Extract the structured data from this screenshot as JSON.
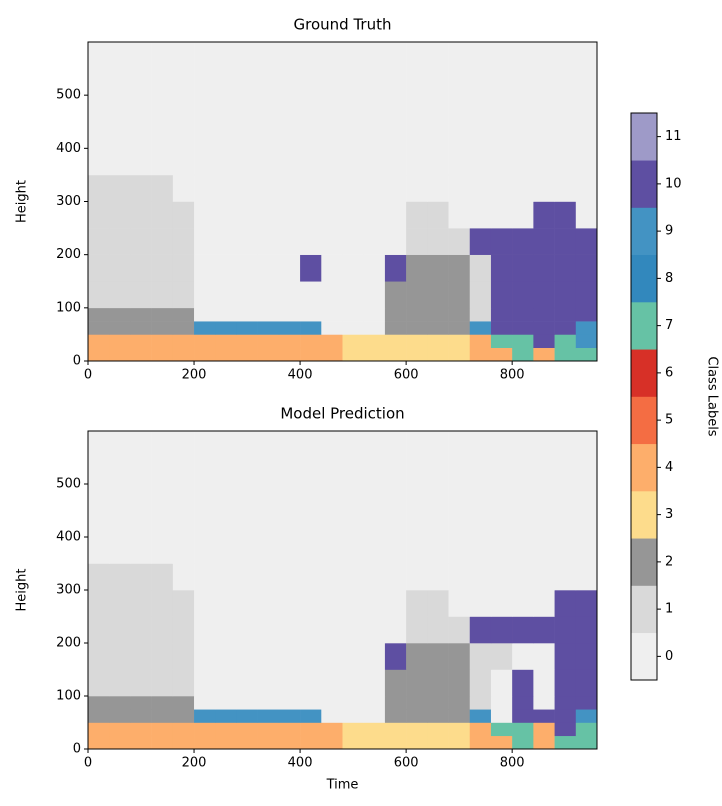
{
  "chart_data": [
    {
      "type": "heatmap",
      "title": "Ground Truth",
      "ylabel": "Height",
      "xlim": [
        0,
        960
      ],
      "ylim": [
        0,
        600
      ],
      "xticks": [
        0,
        200,
        400,
        600,
        800
      ],
      "yticks": [
        0,
        100,
        200,
        300,
        400,
        500
      ],
      "x_edges": [
        0,
        40,
        80,
        120,
        160,
        200,
        240,
        280,
        320,
        360,
        400,
        440,
        480,
        520,
        560,
        600,
        640,
        680,
        720,
        760,
        800,
        840,
        880,
        920,
        960
      ],
      "y_edges": [
        0,
        25,
        50,
        75,
        100,
        150,
        200,
        250,
        300,
        350,
        600
      ],
      "values": [
        [
          4,
          4,
          4,
          4,
          4,
          4,
          4,
          4,
          4,
          4,
          4,
          4,
          3,
          3,
          3,
          3,
          3,
          3,
          4,
          4,
          7,
          4,
          7,
          7
        ],
        [
          4,
          4,
          4,
          4,
          4,
          4,
          4,
          4,
          4,
          4,
          4,
          4,
          3,
          3,
          3,
          3,
          3,
          3,
          4,
          7,
          7,
          10,
          7,
          9
        ],
        [
          2,
          2,
          2,
          2,
          2,
          9,
          9,
          9,
          9,
          9,
          9,
          0,
          0,
          0,
          2,
          2,
          2,
          2,
          9,
          10,
          10,
          10,
          10,
          9
        ],
        [
          2,
          2,
          2,
          2,
          2,
          0,
          0,
          0,
          0,
          0,
          0,
          0,
          0,
          0,
          2,
          2,
          2,
          2,
          1,
          10,
          10,
          10,
          10,
          10
        ],
        [
          1,
          1,
          1,
          1,
          1,
          0,
          0,
          0,
          0,
          0,
          0,
          0,
          0,
          0,
          2,
          2,
          2,
          2,
          1,
          10,
          10,
          10,
          10,
          10
        ],
        [
          1,
          1,
          1,
          1,
          1,
          0,
          0,
          0,
          0,
          0,
          10,
          0,
          0,
          0,
          10,
          2,
          2,
          2,
          1,
          10,
          10,
          10,
          10,
          10
        ],
        [
          1,
          1,
          1,
          1,
          1,
          0,
          0,
          0,
          0,
          0,
          0,
          0,
          0,
          0,
          0,
          1,
          1,
          1,
          10,
          10,
          10,
          10,
          10,
          10
        ],
        [
          1,
          1,
          1,
          1,
          1,
          0,
          0,
          0,
          0,
          0,
          0,
          0,
          0,
          0,
          0,
          1,
          1,
          0,
          0,
          0,
          0,
          10,
          10,
          0
        ],
        [
          1,
          1,
          1,
          1,
          0,
          0,
          0,
          0,
          0,
          0,
          0,
          0,
          0,
          0,
          0,
          0,
          0,
          0,
          0,
          0,
          0,
          0,
          0,
          0
        ],
        [
          0,
          0,
          0,
          0,
          0,
          0,
          0,
          0,
          0,
          0,
          0,
          0,
          0,
          0,
          0,
          0,
          0,
          0,
          0,
          0,
          0,
          0,
          0,
          0
        ]
      ]
    },
    {
      "type": "heatmap",
      "title": "Model Prediction",
      "ylabel": "Height",
      "xlabel": "Time",
      "xlim": [
        0,
        960
      ],
      "ylim": [
        0,
        600
      ],
      "xticks": [
        0,
        200,
        400,
        600,
        800
      ],
      "yticks": [
        0,
        100,
        200,
        300,
        400,
        500
      ],
      "x_edges": [
        0,
        40,
        80,
        120,
        160,
        200,
        240,
        280,
        320,
        360,
        400,
        440,
        480,
        520,
        560,
        600,
        640,
        680,
        720,
        760,
        800,
        840,
        880,
        920,
        960
      ],
      "y_edges": [
        0,
        25,
        50,
        75,
        100,
        150,
        200,
        250,
        300,
        350,
        600
      ],
      "values": [
        [
          4,
          4,
          4,
          4,
          4,
          4,
          4,
          4,
          4,
          4,
          4,
          4,
          3,
          3,
          3,
          3,
          3,
          3,
          4,
          4,
          7,
          4,
          7,
          7
        ],
        [
          4,
          4,
          4,
          4,
          4,
          4,
          4,
          4,
          4,
          4,
          4,
          4,
          3,
          3,
          3,
          3,
          3,
          3,
          4,
          7,
          7,
          4,
          10,
          7
        ],
        [
          2,
          2,
          2,
          2,
          2,
          9,
          9,
          9,
          9,
          9,
          9,
          0,
          0,
          0,
          2,
          2,
          2,
          2,
          9,
          0,
          10,
          10,
          10,
          9
        ],
        [
          2,
          2,
          2,
          2,
          2,
          0,
          0,
          0,
          0,
          0,
          0,
          0,
          0,
          0,
          2,
          2,
          2,
          2,
          1,
          0,
          10,
          0,
          10,
          10
        ],
        [
          1,
          1,
          1,
          1,
          1,
          0,
          0,
          0,
          0,
          0,
          0,
          0,
          0,
          0,
          2,
          2,
          2,
          2,
          1,
          0,
          10,
          0,
          10,
          10
        ],
        [
          1,
          1,
          1,
          1,
          1,
          0,
          0,
          0,
          0,
          0,
          0,
          0,
          0,
          0,
          10,
          2,
          2,
          2,
          1,
          1,
          0,
          0,
          10,
          10
        ],
        [
          1,
          1,
          1,
          1,
          1,
          0,
          0,
          0,
          0,
          0,
          0,
          0,
          0,
          0,
          0,
          1,
          1,
          1,
          10,
          10,
          10,
          10,
          10,
          10
        ],
        [
          1,
          1,
          1,
          1,
          1,
          0,
          0,
          0,
          0,
          0,
          0,
          0,
          0,
          0,
          0,
          1,
          1,
          0,
          0,
          0,
          0,
          0,
          10,
          10
        ],
        [
          1,
          1,
          1,
          1,
          0,
          0,
          0,
          0,
          0,
          0,
          0,
          0,
          0,
          0,
          0,
          0,
          0,
          0,
          0,
          0,
          0,
          0,
          0,
          0
        ],
        [
          0,
          0,
          0,
          0,
          0,
          0,
          0,
          0,
          0,
          0,
          0,
          0,
          0,
          0,
          0,
          0,
          0,
          0,
          0,
          0,
          0,
          0,
          0,
          0
        ]
      ]
    }
  ],
  "colorbar": {
    "label": "Class Labels",
    "ticks": [
      0,
      1,
      2,
      3,
      4,
      5,
      6,
      7,
      8,
      9,
      10,
      11
    ],
    "colors": [
      "#efefef",
      "#d9d9d9",
      "#969696",
      "#fddc8c",
      "#fdae6b",
      "#f46d43",
      "#d73027",
      "#66c2a5",
      "#3288bd",
      "#4393c3",
      "#5e4fa2",
      "#9e9ac8"
    ]
  }
}
